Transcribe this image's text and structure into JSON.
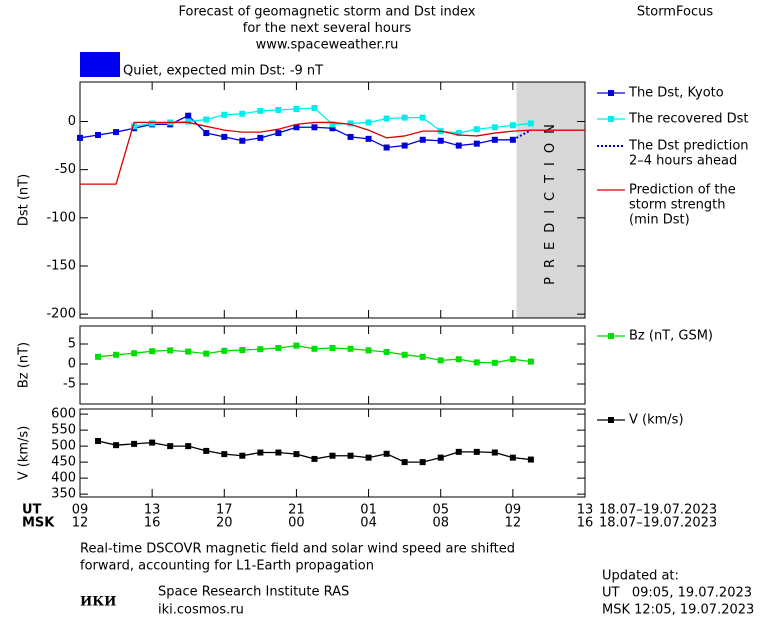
{
  "header": {
    "title": [
      "Forecast of geomagnetic storm and Dst index",
      "for the next several hours",
      "www.spaceweather.ru"
    ],
    "brand": "StormFocus",
    "status": "Quiet, expected min Dst: -9 nT",
    "status_color": "#0000ee"
  },
  "chart_data": [
    {
      "type": "line",
      "ylabel": "Dst (nT)",
      "xlim": [
        0,
        28
      ],
      "ylim": [
        -204,
        41
      ],
      "yticks": [
        0,
        -50,
        -100,
        -150,
        -200
      ],
      "shaded_xlim": [
        24.2,
        28
      ],
      "shaded_label": "PREDICTION",
      "series": [
        {
          "name": [
            "The Dst, Kyoto"
          ],
          "color": "#0000dd",
          "marker": "square",
          "x": [
            0,
            1,
            2,
            3,
            4,
            5,
            6,
            7,
            8,
            9,
            10,
            11,
            12,
            13,
            14,
            15,
            16,
            17,
            18,
            19,
            20,
            21,
            22,
            23,
            24
          ],
          "values": [
            -17,
            -14,
            -11,
            -7,
            -3,
            -3,
            6,
            -12,
            -16,
            -20,
            -17,
            -12,
            -6,
            -6,
            -7,
            -16,
            -18,
            -27,
            -25,
            -19,
            -20,
            -25,
            -23,
            -19,
            -19
          ]
        },
        {
          "name": [
            "The recovered Dst"
          ],
          "color": "#00eeee",
          "marker": "square",
          "x": [
            3,
            4,
            5,
            6,
            7,
            8,
            9,
            10,
            11,
            12,
            13,
            14,
            15,
            16,
            17,
            18,
            19,
            20,
            21,
            22,
            23,
            24,
            25
          ],
          "values": [
            -5,
            -2,
            -1,
            0,
            2,
            7,
            8,
            11,
            12,
            13,
            14,
            -3,
            -2,
            -1,
            3,
            4,
            4,
            -10,
            -12,
            -8,
            -6,
            -4,
            -2
          ]
        },
        {
          "name": [
            "The Dst prediction",
            "2–4 hours ahead"
          ],
          "color": "#0000dd",
          "dash": "dotted",
          "x": [
            24,
            25
          ],
          "values": [
            -19,
            -9
          ]
        },
        {
          "name": [
            "Prediction of the",
            "storm strength",
            "(min Dst)"
          ],
          "color": "#dd0000",
          "x": [
            0,
            2,
            3,
            6,
            7,
            8,
            9,
            10,
            11,
            12,
            13,
            14,
            15,
            16,
            17,
            18,
            19,
            20,
            21,
            22,
            23,
            24,
            25,
            28
          ],
          "values": [
            -65,
            -65,
            -1,
            -1,
            -5,
            -9,
            -11,
            -11,
            -8,
            -3,
            -1,
            -1,
            -3,
            -9,
            -17,
            -15,
            -10,
            -10,
            -14,
            -15,
            -12,
            -10,
            -9,
            -9
          ]
        }
      ]
    },
    {
      "type": "line",
      "ylabel": "Bz (nT)",
      "xlim": [
        0,
        28
      ],
      "ylim": [
        -10,
        9.5
      ],
      "yticks": [
        5,
        0,
        -5
      ],
      "series": [
        {
          "name": [
            "Bz (nT, GSM)"
          ],
          "color": "#00dd00",
          "marker": "square",
          "x": [
            1,
            2,
            3,
            4,
            5,
            6,
            7,
            8,
            9,
            10,
            11,
            12,
            13,
            14,
            15,
            16,
            17,
            18,
            19,
            20,
            21,
            22,
            23,
            24,
            25
          ],
          "values": [
            1.8,
            2.3,
            2.7,
            3.2,
            3.4,
            3.1,
            2.6,
            3.3,
            3.5,
            3.7,
            4.0,
            4.6,
            3.8,
            4.0,
            3.8,
            3.4,
            3.0,
            2.3,
            1.8,
            0.9,
            1.2,
            0.4,
            0.3,
            1.2,
            0.6
          ]
        }
      ]
    },
    {
      "type": "line",
      "ylabel": "V (km/s)",
      "xlim": [
        0,
        28
      ],
      "ylim": [
        341,
        616
      ],
      "yticks": [
        600,
        550,
        500,
        450,
        400,
        350
      ],
      "series": [
        {
          "name": [
            "V (km/s)"
          ],
          "color": "#000000",
          "marker": "square",
          "x": [
            1,
            2,
            3,
            4,
            5,
            6,
            7,
            8,
            9,
            10,
            11,
            12,
            13,
            14,
            15,
            16,
            17,
            18,
            19,
            20,
            21,
            22,
            23,
            24,
            25
          ],
          "values": [
            516,
            503,
            507,
            511,
            500,
            500,
            485,
            475,
            470,
            480,
            480,
            475,
            460,
            470,
            470,
            464,
            476,
            450,
            450,
            464,
            482,
            482,
            480,
            464,
            458
          ]
        }
      ],
      "xlabel": "UT",
      "xlabel2": "MSK",
      "date_range": "18.07–19.07.2023",
      "xticks": [
        {
          "value": 0,
          "label": "09"
        },
        {
          "value": 4,
          "label": "13"
        },
        {
          "value": 8,
          "label": "17"
        },
        {
          "value": 12,
          "label": "21"
        },
        {
          "value": 16,
          "label": "01"
        },
        {
          "value": 20,
          "label": "05"
        },
        {
          "value": 24,
          "label": "09"
        },
        {
          "value": 28,
          "label": "13"
        }
      ],
      "xticks2": [
        "12",
        "16",
        "20",
        "00",
        "04",
        "08",
        "12",
        "16"
      ]
    }
  ],
  "footer": {
    "caption": [
      "Real-time DSCOVR magnetic field and solar wind speed are shifted",
      "forward, accounting for L1-Earth propagation"
    ],
    "logo": "ИКИ",
    "institute": "Space Research Institute RAS",
    "site": "iki.cosmos.ru",
    "updated": [
      "Updated at:",
      "UT   09:05, 19.07.2023",
      "MSK 12:05, 19.07.2023"
    ]
  }
}
